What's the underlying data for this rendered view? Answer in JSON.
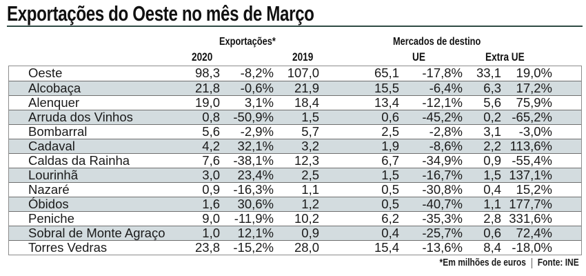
{
  "title": "Exportações do Oeste no mês de Março",
  "headers": {
    "exports_group": "Exportações*",
    "year_2020": "2020",
    "year_2019": "2019",
    "markets_group": "Mercados de destino",
    "ue": "UE",
    "extra_ue": "Extra UE"
  },
  "rows": [
    {
      "name": "Oeste",
      "v2020": "98,3",
      "var": "-8,2%",
      "v2019": "107,0",
      "ue": "65,1",
      "ue_var": "-17,8%",
      "extra": "33,1",
      "extra_var": "19,0%"
    },
    {
      "name": "Alcobaça",
      "v2020": "21,8",
      "var": "-0,6%",
      "v2019": "21,9",
      "ue": "15,5",
      "ue_var": "-6,4%",
      "extra": "6,3",
      "extra_var": "17,2%"
    },
    {
      "name": "Alenquer",
      "v2020": "19,0",
      "var": "3,1%",
      "v2019": "18,4",
      "ue": "13,4",
      "ue_var": "-12,1%",
      "extra": "5,6",
      "extra_var": "75,9%"
    },
    {
      "name": "Arruda dos Vinhos",
      "v2020": "0,8",
      "var": "-50,9%",
      "v2019": "1,5",
      "ue": "0,6",
      "ue_var": "-45,2%",
      "extra": "0,2",
      "extra_var": "-65,2%"
    },
    {
      "name": "Bombarral",
      "v2020": "5,6",
      "var": "-2,9%",
      "v2019": "5,7",
      "ue": "2,5",
      "ue_var": "-2,8%",
      "extra": "3,1",
      "extra_var": "-3,0%"
    },
    {
      "name": "Cadaval",
      "v2020": "4,2",
      "var": "32,1%",
      "v2019": "3,2",
      "ue": "1,9",
      "ue_var": "-8,6%",
      "extra": "2,2",
      "extra_var": "113,6%"
    },
    {
      "name": "Caldas da Rainha",
      "v2020": "7,6",
      "var": "-38,1%",
      "v2019": "12,3",
      "ue": "6,7",
      "ue_var": "-34,9%",
      "extra": "0,9",
      "extra_var": "-55,4%"
    },
    {
      "name": "Lourinhã",
      "v2020": "3,0",
      "var": "23,4%",
      "v2019": "2,5",
      "ue": "1,5",
      "ue_var": "-16,7%",
      "extra": "1,5",
      "extra_var": "137,1%"
    },
    {
      "name": "Nazaré",
      "v2020": "0,9",
      "var": "-16,3%",
      "v2019": "1,1",
      "ue": "0,5",
      "ue_var": "-30,8%",
      "extra": "0,4",
      "extra_var": "15,2%"
    },
    {
      "name": "Óbidos",
      "v2020": "1,6",
      "var": "30,6%",
      "v2019": "1,2",
      "ue": "0,5",
      "ue_var": "-40,7%",
      "extra": "1,1",
      "extra_var": "177,7%"
    },
    {
      "name": "Peniche",
      "v2020": "9,0",
      "var": "-11,9%",
      "v2019": "10,2",
      "ue": "6,2",
      "ue_var": "-35,3%",
      "extra": "2,8",
      "extra_var": "331,6%"
    },
    {
      "name": "Sobral de Monte Agraço",
      "v2020": "1,0",
      "var": "12,1%",
      "v2019": "0,9",
      "ue": "0,4",
      "ue_var": "-25,7%",
      "extra": "0,6",
      "extra_var": "72,4%"
    },
    {
      "name": "Torres Vedras",
      "v2020": "23,8",
      "var": "-15,2%",
      "v2019": "28,0",
      "ue": "15,4",
      "ue_var": "-13,6%",
      "extra": "8,4",
      "extra_var": "-18,0%"
    }
  ],
  "footer": {
    "note": "*Em milhões de euros",
    "source": "Fonte: INE"
  },
  "colors": {
    "row_alt": "#d3dcdf",
    "rule": "#2f4a44"
  }
}
